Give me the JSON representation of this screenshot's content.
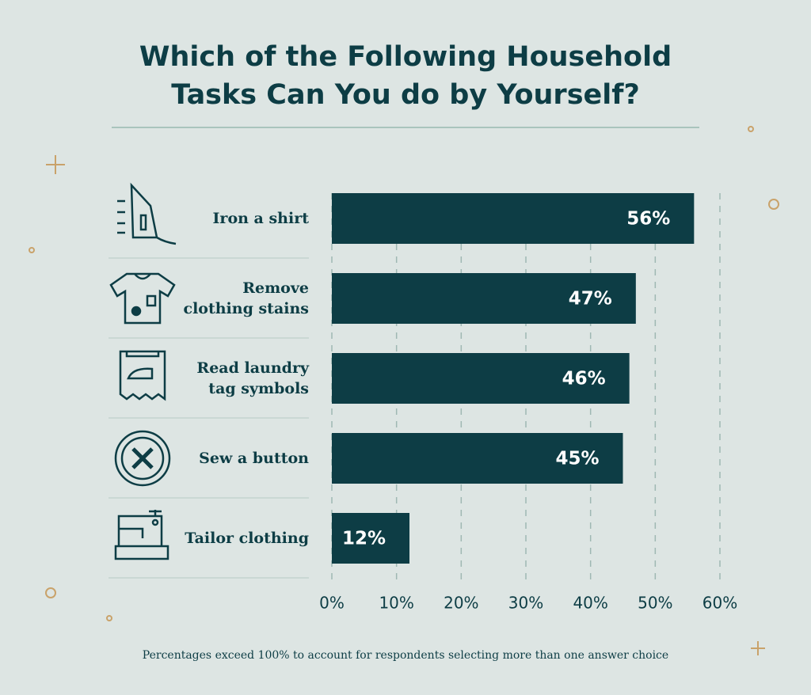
{
  "chart_data": {
    "type": "hbar",
    "title": "Which of the Following Household\nTasks Can You do by Yourself?",
    "categories": [
      "Iron a shirt",
      "Remove\nclothing stains",
      "Read laundry\ntag symbols",
      "Sew a button",
      "Tailor clothing"
    ],
    "values": [
      56,
      47,
      46,
      45,
      12
    ],
    "value_labels": [
      "56%",
      "47%",
      "46%",
      "45%",
      "12%"
    ],
    "color": "#0d3d45",
    "xlim": [
      0,
      60
    ],
    "xticks": [
      {
        "value": 0,
        "label": "0%"
      },
      {
        "value": 10,
        "label": "10%"
      },
      {
        "value": 20,
        "label": "20%"
      },
      {
        "value": 30,
        "label": "30%"
      },
      {
        "value": 40,
        "label": "40%"
      },
      {
        "value": 50,
        "label": "50%"
      },
      {
        "value": 60,
        "label": "60%"
      }
    ],
    "grid": true,
    "footnote": "Percentages exceed 100% to account for respondents selecting more than one answer choice"
  }
}
